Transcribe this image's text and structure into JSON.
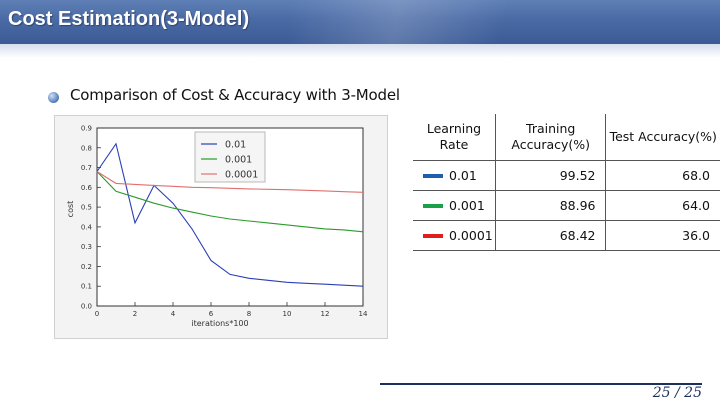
{
  "slide": {
    "title": "Cost Estimation(3-Model)",
    "bullet": "Comparison of Cost & Accuracy with 3-Model",
    "page": "25 / 25"
  },
  "table": {
    "headers": {
      "lr": "Learning Rate",
      "train": "Training Accuracy(%)",
      "test": "Test Accuracy(%)"
    },
    "rows": [
      {
        "lr": "0.01",
        "train": "99.52",
        "test": "68.0",
        "color": "#1f5fb0"
      },
      {
        "lr": "0.001",
        "train": "88.96",
        "test": "64.0",
        "color": "#1aa046"
      },
      {
        "lr": "0.0001",
        "train": "68.42",
        "test": "36.0",
        "color": "#e01e1e"
      }
    ]
  },
  "chart_data": {
    "type": "line",
    "xlabel": "iterations*100",
    "ylabel": "cost",
    "xlim": [
      0,
      14
    ],
    "ylim": [
      0.0,
      0.9
    ],
    "xticks": [
      "0",
      "2",
      "4",
      "6",
      "8",
      "10",
      "12",
      "14"
    ],
    "yticks": [
      "0.0",
      "0.1",
      "0.2",
      "0.3",
      "0.4",
      "0.5",
      "0.6",
      "0.7",
      "0.8",
      "0.9"
    ],
    "legend_position": "top-right",
    "series": [
      {
        "name": "0.01",
        "color": "#2b3fb8",
        "x": [
          0,
          1,
          2,
          3,
          4,
          5,
          6,
          7,
          8,
          9,
          10,
          11,
          12,
          13,
          14
        ],
        "y": [
          0.68,
          0.82,
          0.42,
          0.61,
          0.52,
          0.39,
          0.23,
          0.16,
          0.14,
          0.13,
          0.12,
          0.115,
          0.11,
          0.105,
          0.1
        ]
      },
      {
        "name": "0.001",
        "color": "#2a9a2a",
        "x": [
          0,
          1,
          2,
          3,
          4,
          5,
          6,
          7,
          8,
          9,
          10,
          11,
          12,
          13,
          14
        ],
        "y": [
          0.68,
          0.58,
          0.55,
          0.52,
          0.495,
          0.475,
          0.455,
          0.44,
          0.43,
          0.42,
          0.41,
          0.4,
          0.39,
          0.385,
          0.375
        ]
      },
      {
        "name": "0.0001",
        "color": "#e07070",
        "x": [
          0,
          1,
          2,
          3,
          4,
          5,
          6,
          7,
          8,
          9,
          10,
          11,
          12,
          13,
          14
        ],
        "y": [
          0.68,
          0.62,
          0.615,
          0.61,
          0.605,
          0.6,
          0.598,
          0.595,
          0.592,
          0.59,
          0.588,
          0.585,
          0.582,
          0.578,
          0.575
        ]
      }
    ]
  }
}
